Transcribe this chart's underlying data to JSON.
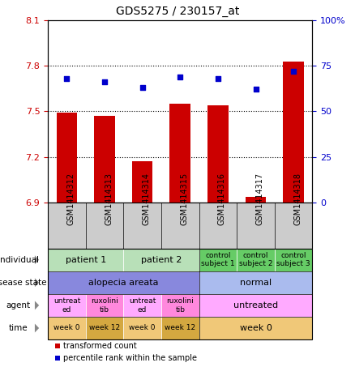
{
  "title": "GDS5275 / 230157_at",
  "samples": [
    "GSM1414312",
    "GSM1414313",
    "GSM1414314",
    "GSM1414315",
    "GSM1414316",
    "GSM1414317",
    "GSM1414318"
  ],
  "bar_values": [
    7.49,
    7.47,
    7.17,
    7.55,
    7.54,
    6.94,
    7.83
  ],
  "dot_values": [
    68,
    66,
    63,
    69,
    68,
    62,
    72
  ],
  "ylim_left": [
    6.9,
    8.1
  ],
  "ylim_right": [
    0,
    100
  ],
  "yticks_left": [
    6.9,
    7.2,
    7.5,
    7.8,
    8.1
  ],
  "yticks_right": [
    0,
    25,
    50,
    75,
    100
  ],
  "bar_color": "#cc0000",
  "dot_color": "#0000cc",
  "hline_values": [
    7.2,
    7.5,
    7.8
  ],
  "annotation_rows": [
    {
      "label": "individual",
      "cells": [
        {
          "text": "patient 1",
          "span": 2,
          "color": "#b8e0b8",
          "fontsize": 8
        },
        {
          "text": "patient 2",
          "span": 2,
          "color": "#b8e0b8",
          "fontsize": 8
        },
        {
          "text": "control\nsubject 1",
          "span": 1,
          "color": "#66cc66",
          "fontsize": 6.5
        },
        {
          "text": "control\nsubject 2",
          "span": 1,
          "color": "#66cc66",
          "fontsize": 6.5
        },
        {
          "text": "control\nsubject 3",
          "span": 1,
          "color": "#66cc66",
          "fontsize": 6.5
        }
      ]
    },
    {
      "label": "disease state",
      "cells": [
        {
          "text": "alopecia areata",
          "span": 4,
          "color": "#8888dd",
          "fontsize": 8
        },
        {
          "text": "normal",
          "span": 3,
          "color": "#aabbee",
          "fontsize": 8
        }
      ]
    },
    {
      "label": "agent",
      "cells": [
        {
          "text": "untreat\ned",
          "span": 1,
          "color": "#ffaaff",
          "fontsize": 6.5
        },
        {
          "text": "ruxolini\ntib",
          "span": 1,
          "color": "#ff88dd",
          "fontsize": 6.5
        },
        {
          "text": "untreat\ned",
          "span": 1,
          "color": "#ffaaff",
          "fontsize": 6.5
        },
        {
          "text": "ruxolini\ntib",
          "span": 1,
          "color": "#ff88dd",
          "fontsize": 6.5
        },
        {
          "text": "untreated",
          "span": 3,
          "color": "#ffaaff",
          "fontsize": 8
        }
      ]
    },
    {
      "label": "time",
      "cells": [
        {
          "text": "week 0",
          "span": 1,
          "color": "#f0c878",
          "fontsize": 6.5
        },
        {
          "text": "week 12",
          "span": 1,
          "color": "#d4a840",
          "fontsize": 6.5
        },
        {
          "text": "week 0",
          "span": 1,
          "color": "#f0c878",
          "fontsize": 6.5
        },
        {
          "text": "week 12",
          "span": 1,
          "color": "#d4a840",
          "fontsize": 6.5
        },
        {
          "text": "week 0",
          "span": 3,
          "color": "#f0c878",
          "fontsize": 8
        }
      ]
    }
  ],
  "legend_items": [
    {
      "color": "#cc0000",
      "label": "transformed count"
    },
    {
      "color": "#0000cc",
      "label": "percentile rank within the sample"
    }
  ],
  "left_axis_color": "#cc0000",
  "right_axis_color": "#0000cc",
  "xtick_bg_color": "#cccccc",
  "figure_bg": "#ffffff"
}
